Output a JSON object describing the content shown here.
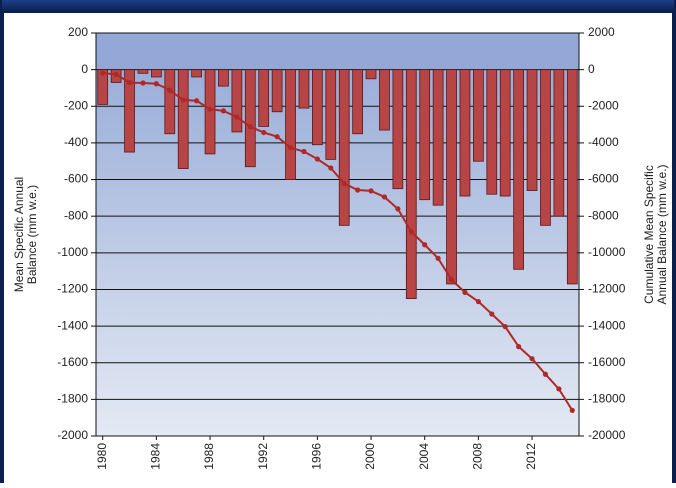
{
  "chart_data": {
    "type": "bar",
    "x": [
      1980,
      1981,
      1982,
      1983,
      1984,
      1985,
      1986,
      1987,
      1988,
      1989,
      1990,
      1991,
      1992,
      1993,
      1994,
      1995,
      1996,
      1997,
      1998,
      1999,
      2000,
      2001,
      2002,
      2003,
      2004,
      2005,
      2006,
      2007,
      2008,
      2009,
      2010,
      2011,
      2012,
      2013,
      2014,
      2015
    ],
    "xlim": [
      1979.5,
      2015.5
    ],
    "xticks": [
      1980,
      1984,
      1988,
      1992,
      1996,
      2000,
      2004,
      2008,
      2012
    ],
    "y_label": [
      "Mean Specific Annual",
      "Balance (mm w.e.)"
    ],
    "y2_label": [
      "Cumulative Mean Specific",
      "Annual Balance (mm w.e.)"
    ],
    "ylim": [
      -2000,
      200
    ],
    "yticks": [
      -2000,
      -1800,
      -1600,
      -1400,
      -1200,
      -1000,
      -800,
      -600,
      -400,
      -200,
      0,
      200
    ],
    "y2lim": [
      -20000,
      2000
    ],
    "y2ticks": [
      -20000,
      -18000,
      -16000,
      -14000,
      -12000,
      -10000,
      -8000,
      -6000,
      -4000,
      -2000,
      0,
      2000
    ],
    "grid": true,
    "series": [
      {
        "type": "bar",
        "color": "#b84545",
        "values": [
          -190,
          -70,
          -450,
          -20,
          -40,
          -350,
          -540,
          -40,
          -460,
          -90,
          -340,
          -530,
          -310,
          -230,
          -600,
          -210,
          -410,
          -490,
          -850,
          -350,
          -50,
          -330,
          -650,
          -1250,
          -710,
          -740,
          -1170,
          -690,
          -500,
          -680,
          -690,
          -1090,
          -660,
          -850,
          -800,
          -1170
        ]
      },
      {
        "type": "line",
        "axis": "y2",
        "color": "#b02828",
        "values": [
          -190,
          -260,
          -710,
          -730,
          -770,
          -1120,
          -1660,
          -1700,
          -2160,
          -2250,
          -2590,
          -3120,
          -3430,
          -3660,
          -4260,
          -4470,
          -4880,
          -5370,
          -6220,
          -6570,
          -6620,
          -6950,
          -7600,
          -8850,
          -9560,
          -10300,
          -11470,
          -12160,
          -12660,
          -13340,
          -14030,
          -15120,
          -15780,
          -16630,
          -17430,
          -18600
        ]
      }
    ]
  }
}
